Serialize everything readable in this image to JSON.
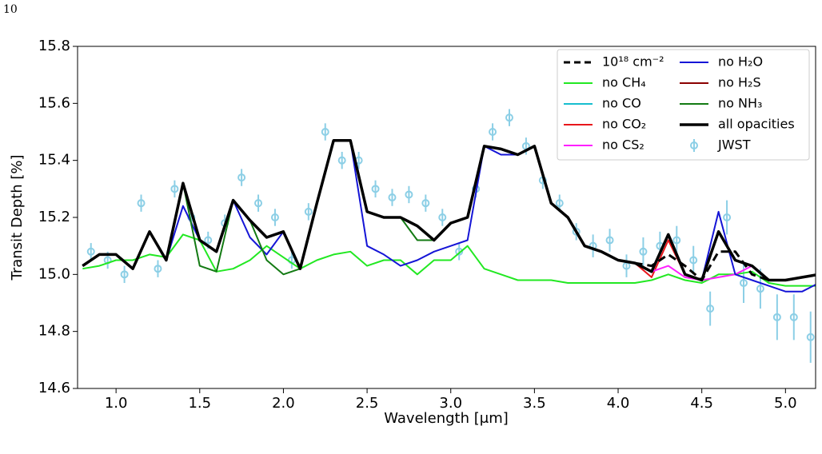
{
  "page_number": "10",
  "chart_data": {
    "type": "line",
    "xlabel": "Wavelength [μm]",
    "ylabel": "Transit Depth [%]",
    "xlim": [
      0.77,
      5.18
    ],
    "ylim": [
      14.6,
      15.8
    ],
    "xticks": [
      {
        "value": 1,
        "label": "1.0"
      },
      {
        "value": 1.5,
        "label": "1.5"
      },
      {
        "value": 2,
        "label": "2.0"
      },
      {
        "value": 2.5,
        "label": "2.5"
      },
      {
        "value": 3,
        "label": "3.0"
      },
      {
        "value": 3.5,
        "label": "3.5"
      },
      {
        "value": 4,
        "label": "4.0"
      },
      {
        "value": 4.5,
        "label": "4.5"
      },
      {
        "value": 5,
        "label": "5.0"
      }
    ],
    "yticks": [
      14.6,
      14.8,
      {
        "value": 15,
        "label": "15.0"
      },
      15.2,
      15.4,
      15.6,
      15.8
    ],
    "legend": "upper right",
    "x": [
      0.8,
      0.9,
      1.0,
      1.1,
      1.2,
      1.3,
      1.4,
      1.5,
      1.6,
      1.7,
      1.8,
      1.9,
      2.0,
      2.1,
      2.2,
      2.3,
      2.4,
      2.5,
      2.6,
      2.7,
      2.8,
      2.9,
      3.0,
      3.1,
      3.2,
      3.3,
      3.4,
      3.5,
      3.6,
      3.7,
      3.8,
      3.9,
      4.0,
      4.1,
      4.2,
      4.3,
      4.4,
      4.5,
      4.6,
      4.7,
      4.8,
      4.9,
      5.0,
      5.1,
      5.2
    ],
    "series": [
      {
        "name": "10¹⁸ cm⁻²",
        "color": "#000000",
        "linewidth": 3,
        "dashed": true,
        "values": [
          15.03,
          15.07,
          15.07,
          15.02,
          15.15,
          15.05,
          15.32,
          15.12,
          15.08,
          15.26,
          15.19,
          15.13,
          15.15,
          15.02,
          15.25,
          15.47,
          15.47,
          15.22,
          15.2,
          15.2,
          15.17,
          15.12,
          15.18,
          15.2,
          15.45,
          15.44,
          15.42,
          15.45,
          15.25,
          15.2,
          15.1,
          15.08,
          15.05,
          15.04,
          15.03,
          15.07,
          15.03,
          14.98,
          15.08,
          15.08,
          15.0,
          14.98,
          14.98,
          14.99,
          15.0
        ]
      },
      {
        "name": "no CH₄",
        "color": "#22e822",
        "linewidth": 2,
        "values": [
          15.02,
          15.03,
          15.05,
          15.05,
          15.07,
          15.06,
          15.14,
          15.12,
          15.01,
          15.02,
          15.05,
          15.1,
          15.06,
          15.02,
          15.05,
          15.07,
          15.08,
          15.03,
          15.05,
          15.05,
          15.0,
          15.05,
          15.05,
          15.1,
          15.02,
          15.0,
          14.98,
          14.98,
          14.98,
          14.97,
          14.97,
          14.97,
          14.97,
          14.97,
          14.98,
          15.0,
          14.98,
          14.97,
          15.0,
          15.0,
          15.01,
          14.97,
          14.96,
          14.96,
          14.96
        ]
      },
      {
        "name": "no CO",
        "color": "#17becf",
        "linewidth": 2,
        "values": [
          15.03,
          15.07,
          15.07,
          15.02,
          15.15,
          15.05,
          15.32,
          15.12,
          15.08,
          15.26,
          15.19,
          15.13,
          15.15,
          15.02,
          15.25,
          15.47,
          15.47,
          15.22,
          15.2,
          15.2,
          15.17,
          15.12,
          15.18,
          15.2,
          15.45,
          15.44,
          15.42,
          15.45,
          15.25,
          15.2,
          15.1,
          15.08,
          15.05,
          15.04,
          15.01,
          15.14,
          15.0,
          14.98,
          15.15,
          15.05,
          15.03,
          14.98,
          14.98,
          14.99,
          15.0
        ]
      },
      {
        "name": "no CO₂",
        "color": "#e8161b",
        "linewidth": 2,
        "values": [
          15.03,
          15.07,
          15.07,
          15.02,
          15.15,
          15.05,
          15.32,
          15.12,
          15.08,
          15.26,
          15.19,
          15.13,
          15.15,
          15.02,
          15.25,
          15.47,
          15.47,
          15.22,
          15.2,
          15.2,
          15.17,
          15.12,
          15.18,
          15.2,
          15.45,
          15.44,
          15.42,
          15.45,
          15.25,
          15.2,
          15.1,
          15.08,
          15.05,
          15.04,
          14.99,
          15.12,
          15.0,
          14.98,
          15.15,
          15.05,
          15.03,
          14.98,
          14.98,
          14.99,
          15.0
        ]
      },
      {
        "name": "no CS₂",
        "color": "#ff1fff",
        "linewidth": 2,
        "values": [
          15.03,
          15.07,
          15.07,
          15.02,
          15.15,
          15.05,
          15.32,
          15.12,
          15.08,
          15.26,
          15.19,
          15.13,
          15.15,
          15.02,
          15.25,
          15.47,
          15.47,
          15.22,
          15.2,
          15.2,
          15.17,
          15.12,
          15.18,
          15.2,
          15.45,
          15.44,
          15.42,
          15.45,
          15.25,
          15.2,
          15.1,
          15.08,
          15.05,
          15.04,
          15.01,
          15.03,
          14.99,
          14.98,
          14.99,
          15.0,
          15.03,
          14.98,
          14.98,
          14.99,
          15.0
        ]
      },
      {
        "name": "no H₂O",
        "color": "#1515d6",
        "linewidth": 2,
        "values": [
          15.03,
          15.07,
          15.07,
          15.02,
          15.15,
          15.05,
          15.24,
          15.12,
          15.08,
          15.26,
          15.13,
          15.07,
          15.15,
          15.02,
          15.25,
          15.47,
          15.47,
          15.1,
          15.07,
          15.03,
          15.05,
          15.08,
          15.1,
          15.12,
          15.45,
          15.42,
          15.42,
          15.45,
          15.25,
          15.2,
          15.1,
          15.08,
          15.05,
          15.04,
          15.01,
          15.14,
          15.0,
          14.98,
          15.22,
          15.0,
          14.98,
          14.96,
          14.94,
          14.94,
          14.97
        ]
      },
      {
        "name": "no H₂S",
        "color": "#8b0000",
        "linewidth": 2,
        "values": [
          15.03,
          15.07,
          15.07,
          15.02,
          15.15,
          15.05,
          15.32,
          15.12,
          15.08,
          15.26,
          15.19,
          15.13,
          15.15,
          15.02,
          15.25,
          15.47,
          15.47,
          15.22,
          15.2,
          15.2,
          15.17,
          15.12,
          15.18,
          15.2,
          15.45,
          15.44,
          15.42,
          15.45,
          15.25,
          15.2,
          15.1,
          15.08,
          15.05,
          15.04,
          15.01,
          15.14,
          15.0,
          14.98,
          15.15,
          15.05,
          15.03,
          14.98,
          14.98,
          14.99,
          15.0
        ]
      },
      {
        "name": "no NH₃",
        "color": "#137a13",
        "linewidth": 2,
        "values": [
          15.03,
          15.07,
          15.07,
          15.02,
          15.15,
          15.05,
          15.32,
          15.03,
          15.01,
          15.26,
          15.19,
          15.05,
          15.0,
          15.02,
          15.25,
          15.47,
          15.47,
          15.22,
          15.2,
          15.2,
          15.12,
          15.12,
          15.18,
          15.2,
          15.45,
          15.44,
          15.42,
          15.45,
          15.25,
          15.2,
          15.1,
          15.08,
          15.05,
          15.04,
          15.01,
          15.14,
          15.0,
          14.98,
          15.15,
          15.05,
          15.03,
          14.98,
          14.98,
          14.99,
          15.0
        ]
      },
      {
        "name": "all opacities",
        "color": "#000000",
        "linewidth": 3.5,
        "values": [
          15.03,
          15.07,
          15.07,
          15.02,
          15.15,
          15.05,
          15.32,
          15.12,
          15.08,
          15.26,
          15.19,
          15.13,
          15.15,
          15.02,
          15.25,
          15.47,
          15.47,
          15.22,
          15.2,
          15.2,
          15.17,
          15.12,
          15.18,
          15.2,
          15.45,
          15.44,
          15.42,
          15.45,
          15.25,
          15.2,
          15.1,
          15.08,
          15.05,
          15.04,
          15.01,
          15.14,
          15.0,
          14.98,
          15.15,
          15.05,
          15.03,
          14.98,
          14.98,
          14.99,
          15.0
        ]
      }
    ],
    "observed": {
      "name": "JWST",
      "color": "#8ccfe6",
      "x": [
        0.85,
        0.95,
        1.05,
        1.15,
        1.25,
        1.35,
        1.45,
        1.55,
        1.65,
        1.75,
        1.85,
        1.95,
        2.05,
        2.15,
        2.25,
        2.35,
        2.45,
        2.55,
        2.65,
        2.75,
        2.85,
        2.95,
        3.05,
        3.15,
        3.25,
        3.35,
        3.45,
        3.55,
        3.65,
        3.75,
        3.85,
        3.95,
        4.05,
        4.15,
        4.25,
        4.35,
        4.45,
        4.55,
        4.65,
        4.75,
        4.85,
        4.95,
        5.05,
        5.15
      ],
      "values": [
        15.08,
        15.05,
        15.0,
        15.25,
        15.02,
        15.3,
        15.2,
        15.12,
        15.18,
        15.34,
        15.25,
        15.2,
        15.05,
        15.22,
        15.5,
        15.4,
        15.4,
        15.3,
        15.27,
        15.28,
        15.25,
        15.2,
        15.08,
        15.3,
        15.5,
        15.55,
        15.45,
        15.33,
        15.25,
        15.15,
        15.1,
        15.12,
        15.03,
        15.08,
        15.1,
        15.12,
        15.05,
        14.88,
        15.2,
        14.97,
        14.95,
        14.85,
        14.85,
        14.78
      ],
      "errors": [
        0.03,
        0.03,
        0.03,
        0.03,
        0.03,
        0.03,
        0.03,
        0.03,
        0.03,
        0.03,
        0.03,
        0.03,
        0.03,
        0.03,
        0.03,
        0.03,
        0.03,
        0.03,
        0.03,
        0.03,
        0.03,
        0.03,
        0.03,
        0.03,
        0.03,
        0.03,
        0.03,
        0.03,
        0.03,
        0.03,
        0.04,
        0.04,
        0.04,
        0.05,
        0.05,
        0.05,
        0.05,
        0.06,
        0.06,
        0.07,
        0.07,
        0.08,
        0.08,
        0.09
      ]
    }
  }
}
